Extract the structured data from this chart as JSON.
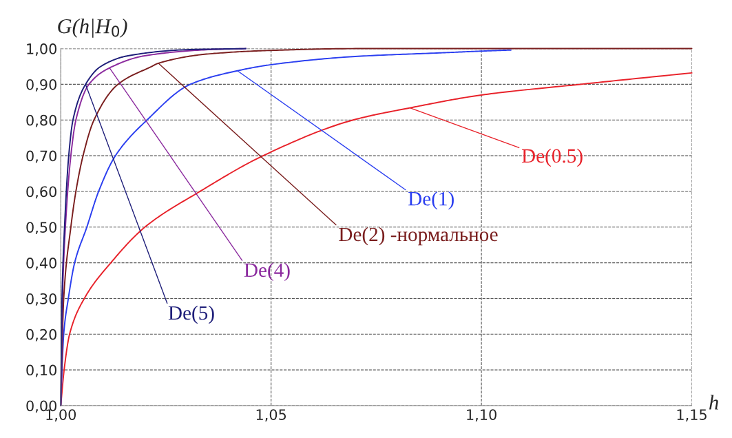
{
  "chart_data": {
    "type": "line",
    "xlabel": "h",
    "ylabel": "G(h|H$_{0}$)",
    "xlim": [
      1.0,
      1.15
    ],
    "ylim": [
      0,
      1.0
    ],
    "xticks": [
      {
        "value": 1.0,
        "label": "1,00"
      },
      {
        "value": 1.05,
        "label": "1,05"
      },
      {
        "value": 1.1,
        "label": "1,10"
      },
      {
        "value": 1.15,
        "label": "1,15"
      }
    ],
    "yticks": [
      {
        "value": 0,
        "label": "0,00"
      },
      {
        "value": 0.1,
        "label": "0,10"
      },
      {
        "value": 0.2,
        "label": "0,20"
      },
      {
        "value": 0.3,
        "label": "0,30"
      },
      {
        "value": 0.4,
        "label": "0,40"
      },
      {
        "value": 0.5,
        "label": "0,50"
      },
      {
        "value": 0.6,
        "label": "0,60"
      },
      {
        "value": 0.7,
        "label": "0,70"
      },
      {
        "value": 0.8,
        "label": "0,80"
      },
      {
        "value": 0.9,
        "label": "0,90"
      },
      {
        "value": 1.0,
        "label": "1,00"
      }
    ],
    "grid": true,
    "legend": false,
    "marker": "none",
    "line_style": "solid",
    "series": [
      {
        "name": "De(0.5)",
        "color": "#e8222a",
        "x": [
          1.0,
          1.0008,
          1.0021,
          1.0056,
          1.0119,
          1.02,
          1.0331,
          1.0481,
          1.0695,
          1.083,
          1.1,
          1.1235,
          1.15
        ],
        "values": [
          0.0,
          0.1,
          0.2,
          0.3,
          0.4,
          0.5,
          0.6,
          0.7,
          0.8,
          0.834,
          0.87,
          0.9,
          0.932
        ]
      },
      {
        "name": "De(1)",
        "color": "#2b3ff0",
        "x": [
          1.0,
          1.0003,
          1.0007,
          1.0018,
          1.0033,
          1.0062,
          1.009,
          1.013,
          1.0205,
          1.0308,
          1.042,
          1.05,
          1.07,
          1.09,
          1.1,
          1.107
        ],
        "values": [
          0.0,
          0.1,
          0.2,
          0.3,
          0.4,
          0.5,
          0.6,
          0.7,
          0.8,
          0.9,
          0.938,
          0.955,
          0.978,
          0.988,
          0.993,
          0.996
        ]
      },
      {
        "name": "De(2) -нормальное",
        "color": "#7a1e1e",
        "x": [
          1.0,
          1.0003,
          1.0007,
          1.0024,
          1.0036,
          1.0053,
          1.0079,
          1.0136,
          1.0216,
          1.0232,
          1.035,
          1.05,
          1.07,
          1.1,
          1.15
        ],
        "values": [
          0.0,
          0.15,
          0.3,
          0.5,
          0.6,
          0.7,
          0.8,
          0.9,
          0.95,
          0.959,
          0.985,
          0.995,
          1.0,
          1.0,
          1.0
        ]
      },
      {
        "name": "De(4)",
        "color": "#8b2a9e",
        "x": [
          1.0,
          1.0004,
          1.0011,
          1.0024,
          1.0036,
          1.0067,
          1.0116,
          1.02,
          1.035,
          1.044
        ],
        "values": [
          0.0,
          0.3,
          0.5,
          0.7,
          0.8,
          0.9,
          0.946,
          0.98,
          0.997,
          1.0
        ]
      },
      {
        "name": "De(5)",
        "color": "#1f1f7a",
        "x": [
          1.0,
          1.0003,
          1.0009,
          1.0019,
          1.0029,
          1.0059,
          1.0095,
          1.016,
          1.03,
          1.044
        ],
        "values": [
          0.0,
          0.3,
          0.5,
          0.7,
          0.8,
          0.9,
          0.95,
          0.98,
          0.997,
          1.0
        ]
      }
    ]
  }
}
